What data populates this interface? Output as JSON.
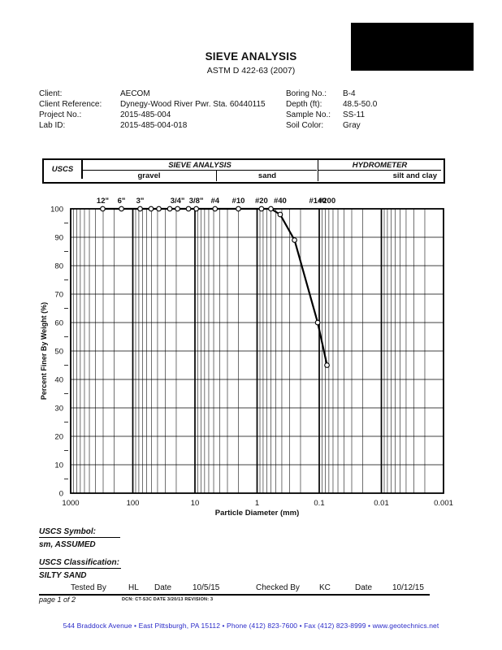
{
  "page": {
    "title": "SIEVE ANALYSIS",
    "subtitle": "ASTM D 422-63 (2007)"
  },
  "info": {
    "left": [
      {
        "label": "Client:",
        "value": "AECOM"
      },
      {
        "label": "Client Reference:",
        "value": "Dynegy-Wood River Pwr. Sta. 60440115"
      },
      {
        "label": "Project No.:",
        "value": "2015-485-004"
      },
      {
        "label": "Lab ID:",
        "value": "2015-485-004-018"
      }
    ],
    "right": [
      {
        "label": "Boring No.:",
        "value": "B-4"
      },
      {
        "label": "Depth (ft):",
        "value": "48.5-50.0"
      },
      {
        "label": "Sample No.:",
        "value": "SS-11"
      },
      {
        "label": "Soil Color:",
        "value": "Gray"
      }
    ]
  },
  "classification_table": {
    "corner": "USCS",
    "sieve_group": "SIEVE ANALYSIS",
    "hydrometer_group": "HYDROMETER",
    "columns": [
      "gravel",
      "sand",
      "silt and clay"
    ]
  },
  "chart_data": {
    "type": "line",
    "x_scale": "log-decreasing",
    "xlim": [
      1000,
      0.001
    ],
    "ylim": [
      0,
      100
    ],
    "xlabel": "Particle Diameter (mm)",
    "ylabel": "Percent Finer By Weight (%)",
    "grid": true,
    "x_ticks": [
      {
        "v": 1000,
        "label": "1000"
      },
      {
        "v": 100,
        "label": "100"
      },
      {
        "v": 10,
        "label": "10"
      },
      {
        "v": 1,
        "label": "1"
      },
      {
        "v": 0.1,
        "label": "0.1"
      },
      {
        "v": 0.01,
        "label": "0.01"
      },
      {
        "v": 0.001,
        "label": "0.001"
      }
    ],
    "y_ticks": [
      0,
      10,
      20,
      30,
      40,
      50,
      60,
      70,
      80,
      90,
      100
    ],
    "sieve_labels": [
      {
        "label": "12\"",
        "d": 304.8
      },
      {
        "label": "6\"",
        "d": 152.4
      },
      {
        "label": "3\"",
        "d": 76.2
      },
      {
        "label": "3/4\"",
        "d": 19.05
      },
      {
        "label": "3/8\"",
        "d": 9.525
      },
      {
        "label": "#4",
        "d": 4.75
      },
      {
        "label": "#10",
        "d": 2.0
      },
      {
        "label": "#20",
        "d": 0.85
      },
      {
        "label": "#40",
        "d": 0.425
      },
      {
        "label": "#140",
        "d": 0.106
      },
      {
        "label": "#200",
        "d": 0.075
      }
    ],
    "series": [
      {
        "name": "grain-size-distribution",
        "points": [
          [
            304.8,
            100
          ],
          [
            152.4,
            100
          ],
          [
            76.2,
            100
          ],
          [
            50.8,
            100
          ],
          [
            38.1,
            100
          ],
          [
            25.4,
            100
          ],
          [
            19.05,
            100
          ],
          [
            12.7,
            100
          ],
          [
            9.525,
            100
          ],
          [
            4.75,
            100
          ],
          [
            2.0,
            100
          ],
          [
            0.85,
            100
          ],
          [
            0.6,
            100
          ],
          [
            0.425,
            98
          ],
          [
            0.25,
            89
          ],
          [
            0.106,
            60
          ],
          [
            0.075,
            45
          ]
        ]
      }
    ]
  },
  "results": {
    "symbol_heading": "USCS Symbol:",
    "symbol_value": "sm, ASSUMED",
    "classification_heading": "USCS Classification:",
    "classification_value": "SILTY SAND"
  },
  "signoff": {
    "tested_by_label": "Tested By",
    "tested_by": "HL",
    "date1_label": "Date",
    "date1": "10/5/15",
    "checked_by_label": "Checked By",
    "checked_by": "KC",
    "date2_label": "Date",
    "date2": "10/12/15",
    "page_note": "page 1 of 2",
    "dcn_note": "DCN: CT-S3C DATE 3/20/13   REVISION: 3"
  },
  "footer": {
    "text": "544 Braddock Avenue  •  East Pittsburgh, PA  15112  •  Phone  (412) 823-7600  •  Fax (412) 823-8999  •  www.geotechnics.net",
    "color": "#2a2ac8"
  }
}
